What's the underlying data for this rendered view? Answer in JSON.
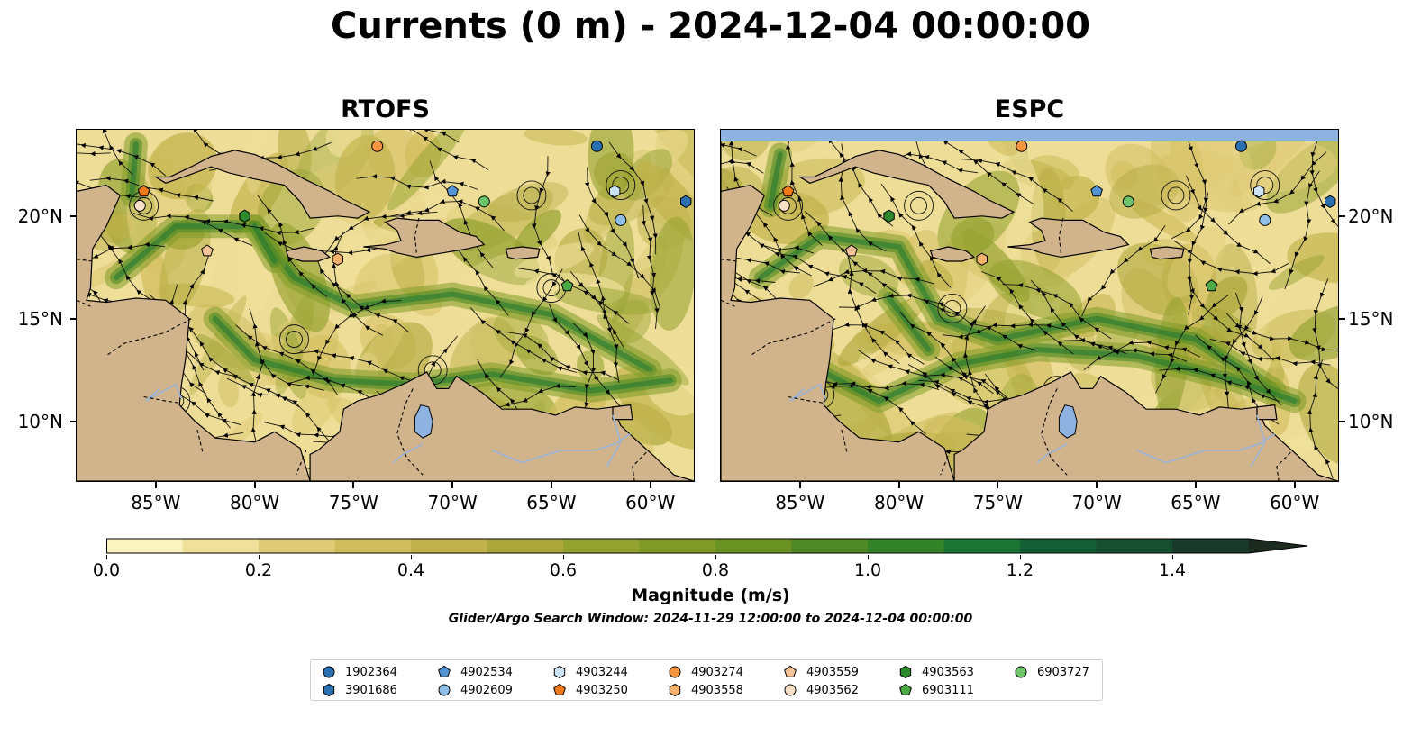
{
  "title": "Currents (0 m) - 2024-12-04 00:00:00",
  "panels": [
    {
      "title": "RTOFS"
    },
    {
      "title": "ESPC"
    }
  ],
  "lon_ticks": [
    "85°W",
    "80°W",
    "75°W",
    "70°W",
    "65°W",
    "60°W"
  ],
  "lat_ticks": [
    "20°N",
    "15°N",
    "10°N"
  ],
  "colorbar": {
    "label": "Magnitude (m/s)",
    "tick_labels": [
      "0.0",
      "0.2",
      "0.4",
      "0.6",
      "0.8",
      "1.0",
      "1.2",
      "1.4"
    ],
    "range": [
      0,
      1.6
    ],
    "step": 0.1,
    "extend": "max",
    "colors": [
      "#fbf4c1",
      "#efe09a",
      "#e0cc78",
      "#d2bd5d",
      "#c2b34c",
      "#aea83c",
      "#94a230",
      "#7f9b26",
      "#6b9324",
      "#4f8a26",
      "#338328",
      "#1c7633",
      "#145f36",
      "#164f30",
      "#19392a",
      "#1b2b1f"
    ]
  },
  "search_window": "Glider/Argo Search Window: 2024-11-29 12:00:00 to 2024-12-04 00:00:00",
  "colors": {
    "land": "#d2b48c",
    "water": "#8fb3e0",
    "river": "#9ab4d8"
  },
  "legend": [
    {
      "id": "1902364",
      "shape": "circle",
      "color": "#2a6fb0"
    },
    {
      "id": "3901686",
      "shape": "hexagon",
      "color": "#2a6fb0"
    },
    {
      "id": "4902534",
      "shape": "pentagon",
      "color": "#5594d4"
    },
    {
      "id": "4902609",
      "shape": "circle",
      "color": "#8fbfe8"
    },
    {
      "id": "4903244",
      "shape": "hexagon",
      "color": "#cde4f7"
    },
    {
      "id": "4903250",
      "shape": "pentagon",
      "color": "#f07a1a"
    },
    {
      "id": "4903274",
      "shape": "circle",
      "color": "#f6953f"
    },
    {
      "id": "4903558",
      "shape": "hexagon",
      "color": "#f8b26e"
    },
    {
      "id": "4903559",
      "shape": "pentagon",
      "color": "#f8c49a"
    },
    {
      "id": "4903562",
      "shape": "circle",
      "color": "#fbe0c8"
    },
    {
      "id": "4903563",
      "shape": "hexagon",
      "color": "#2c8a2c"
    },
    {
      "id": "6903111",
      "shape": "pentagon",
      "color": "#4aaa44"
    },
    {
      "id": "6903727",
      "shape": "circle",
      "color": "#6ec46a"
    }
  ],
  "floats": [
    {
      "id": "1902364",
      "shape": "circle",
      "color": "#2a6fb0",
      "lon": -62.7,
      "lat": 23.4
    },
    {
      "id": "3901686",
      "shape": "hexagon",
      "color": "#2a6fb0",
      "lon": -58.2,
      "lat": 20.7
    },
    {
      "id": "4902534",
      "shape": "pentagon",
      "color": "#5594d4",
      "lon": -70.0,
      "lat": 21.2
    },
    {
      "id": "4902609",
      "shape": "circle",
      "color": "#8fbfe8",
      "lon": -61.5,
      "lat": 19.8
    },
    {
      "id": "4903244",
      "shape": "hexagon",
      "color": "#cde4f7",
      "lon": -61.8,
      "lat": 21.2
    },
    {
      "id": "4903250",
      "shape": "pentagon",
      "color": "#f07a1a",
      "lon": -85.6,
      "lat": 21.2
    },
    {
      "id": "4903274",
      "shape": "circle",
      "color": "#f6953f",
      "lon": -73.8,
      "lat": 23.4
    },
    {
      "id": "4903558",
      "shape": "hexagon",
      "color": "#f8b26e",
      "lon": -75.8,
      "lat": 17.9
    },
    {
      "id": "4903559",
      "shape": "pentagon",
      "color": "#f8c49a",
      "lon": -82.4,
      "lat": 18.3
    },
    {
      "id": "4903562",
      "shape": "circle",
      "color": "#fbe0c8",
      "lon": -85.8,
      "lat": 20.5
    },
    {
      "id": "4903563",
      "shape": "hexagon",
      "color": "#2c8a2c",
      "lon": -80.5,
      "lat": 20.0
    },
    {
      "id": "6903111",
      "shape": "pentagon",
      "color": "#4aaa44",
      "lon": -64.2,
      "lat": 16.6
    },
    {
      "id": "6903727",
      "shape": "circle",
      "color": "#6ec46a",
      "lon": -68.4,
      "lat": 20.7
    }
  ]
}
